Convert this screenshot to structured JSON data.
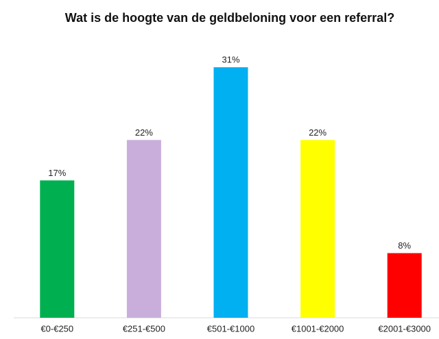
{
  "chart_data": {
    "type": "bar",
    "title": "Wat is de hoogte van de geldbeloning voor een referral?",
    "categories": [
      "€0-€250",
      "€251-€500",
      "€501-€1000",
      "€1001-€2000",
      "€2001-€3000"
    ],
    "values": [
      17,
      22,
      31,
      22,
      8
    ],
    "value_labels": [
      "17%",
      "22%",
      "31%",
      "22%",
      "8%"
    ],
    "colors": [
      "#00b050",
      "#c9aedb",
      "#00b0f0",
      "#ffff00",
      "#ff0000"
    ]
  }
}
